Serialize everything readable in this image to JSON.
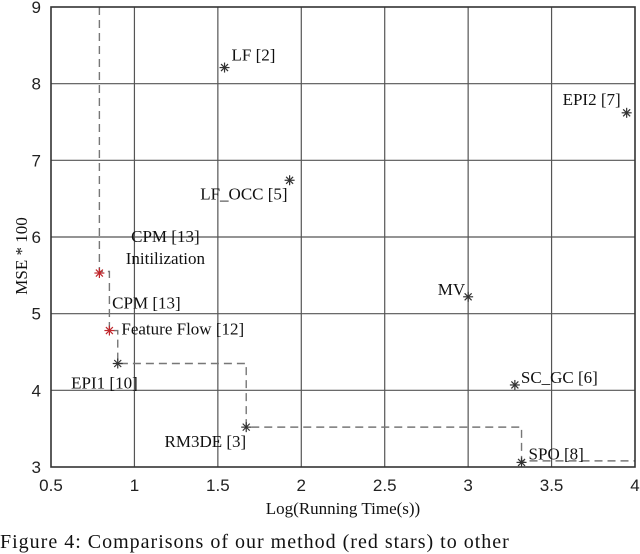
{
  "chart_data": {
    "type": "scatter",
    "title": "",
    "xlabel": "Log(Running Time(s))",
    "ylabel": "MSE * 100",
    "xlim": [
      0.5,
      4
    ],
    "ylim": [
      3,
      9
    ],
    "xticks": [
      "0.5",
      "1",
      "1.5",
      "2",
      "2.5",
      "3",
      "3.5",
      "4"
    ],
    "yticks": [
      "3",
      "4",
      "5",
      "6",
      "7",
      "8",
      "9"
    ],
    "grid": true,
    "points": [
      {
        "label": "LF [2]",
        "x": 1.54,
        "y": 8.21,
        "color": "#333333"
      },
      {
        "label": "EPI2 [7]",
        "x": 3.95,
        "y": 7.62,
        "color": "#333333"
      },
      {
        "label": "LF_OCC [5]",
        "x": 1.93,
        "y": 6.74,
        "color": "#333333"
      },
      {
        "label": "CPM [13]",
        "label2": "Initilization",
        "x": 0.79,
        "y": 5.53,
        "color": "#c0282d"
      },
      {
        "label": "CPM [13]",
        "label2": "Feature Flow [12]",
        "x": 0.85,
        "y": 4.78,
        "color": "#c0282d"
      },
      {
        "label": "EPI1 [10]",
        "x": 0.9,
        "y": 4.35,
        "color": "#333333"
      },
      {
        "label": "MV",
        "x": 3.0,
        "y": 5.22,
        "color": "#333333"
      },
      {
        "label": "SC_GC [6]",
        "x": 3.28,
        "y": 4.07,
        "color": "#333333"
      },
      {
        "label": "RM3DE [3]",
        "x": 1.67,
        "y": 3.52,
        "color": "#333333"
      },
      {
        "label": "SPO [8]",
        "x": 3.32,
        "y": 3.06,
        "color": "#333333"
      }
    ],
    "frontier": [
      [
        0.79,
        9
      ],
      [
        0.79,
        5.55
      ],
      [
        0.85,
        5.55
      ],
      [
        0.85,
        4.78
      ],
      [
        0.9,
        4.78
      ],
      [
        0.9,
        4.35
      ],
      [
        1.67,
        4.35
      ],
      [
        1.67,
        3.52
      ],
      [
        3.32,
        3.52
      ],
      [
        3.32,
        3.08
      ],
      [
        4,
        3.08
      ]
    ]
  },
  "caption": "Figure 4:  Comparisons of our method (red stars) to other"
}
